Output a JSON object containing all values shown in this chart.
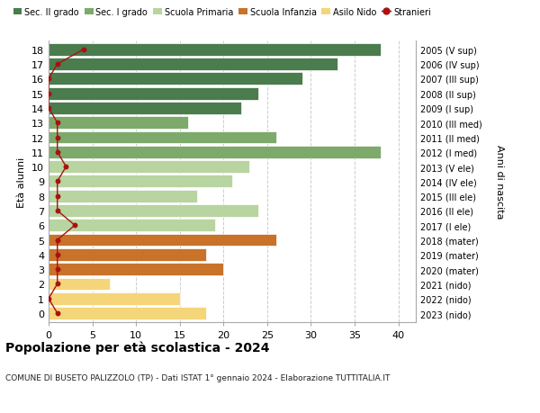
{
  "ages": [
    18,
    17,
    16,
    15,
    14,
    13,
    12,
    11,
    10,
    9,
    8,
    7,
    6,
    5,
    4,
    3,
    2,
    1,
    0
  ],
  "right_labels": [
    "2005 (V sup)",
    "2006 (IV sup)",
    "2007 (III sup)",
    "2008 (II sup)",
    "2009 (I sup)",
    "2010 (III med)",
    "2011 (II med)",
    "2012 (I med)",
    "2013 (V ele)",
    "2014 (IV ele)",
    "2015 (III ele)",
    "2016 (II ele)",
    "2017 (I ele)",
    "2018 (mater)",
    "2019 (mater)",
    "2020 (mater)",
    "2021 (nido)",
    "2022 (nido)",
    "2023 (nido)"
  ],
  "bar_values": [
    38,
    33,
    29,
    24,
    22,
    16,
    26,
    38,
    23,
    21,
    17,
    24,
    19,
    26,
    18,
    20,
    7,
    15,
    18
  ],
  "bar_colors": [
    "#4a7c4e",
    "#4a7c4e",
    "#4a7c4e",
    "#4a7c4e",
    "#4a7c4e",
    "#7daa6b",
    "#7daa6b",
    "#7daa6b",
    "#b8d4a0",
    "#b8d4a0",
    "#b8d4a0",
    "#b8d4a0",
    "#b8d4a0",
    "#c8722a",
    "#c8722a",
    "#c8722a",
    "#f5d57a",
    "#f5d57a",
    "#f5d57a"
  ],
  "stranieri_values": [
    4,
    1,
    0,
    0,
    0,
    1,
    1,
    1,
    2,
    1,
    1,
    1,
    3,
    1,
    1,
    1,
    1,
    0,
    1
  ],
  "stranieri_color": "#aa1111",
  "legend_labels": [
    "Sec. II grado",
    "Sec. I grado",
    "Scuola Primaria",
    "Scuola Infanzia",
    "Asilo Nido",
    "Stranieri"
  ],
  "legend_colors": [
    "#4a7c4e",
    "#7daa6b",
    "#b8d4a0",
    "#c8722a",
    "#f5d57a",
    "#aa1111"
  ],
  "ylabel": "Età alunni",
  "right_ylabel": "Anni di nascita",
  "title": "Popolazione per età scolastica - 2024",
  "subtitle": "COMUNE DI BUSETO PALIZZOLO (TP) - Dati ISTAT 1° gennaio 2024 - Elaborazione TUTTITALIA.IT",
  "xlim": [
    0,
    42
  ],
  "xticks": [
    0,
    5,
    10,
    15,
    20,
    25,
    30,
    35,
    40
  ],
  "background_color": "#ffffff",
  "grid_color": "#cccccc",
  "bar_height": 0.85
}
